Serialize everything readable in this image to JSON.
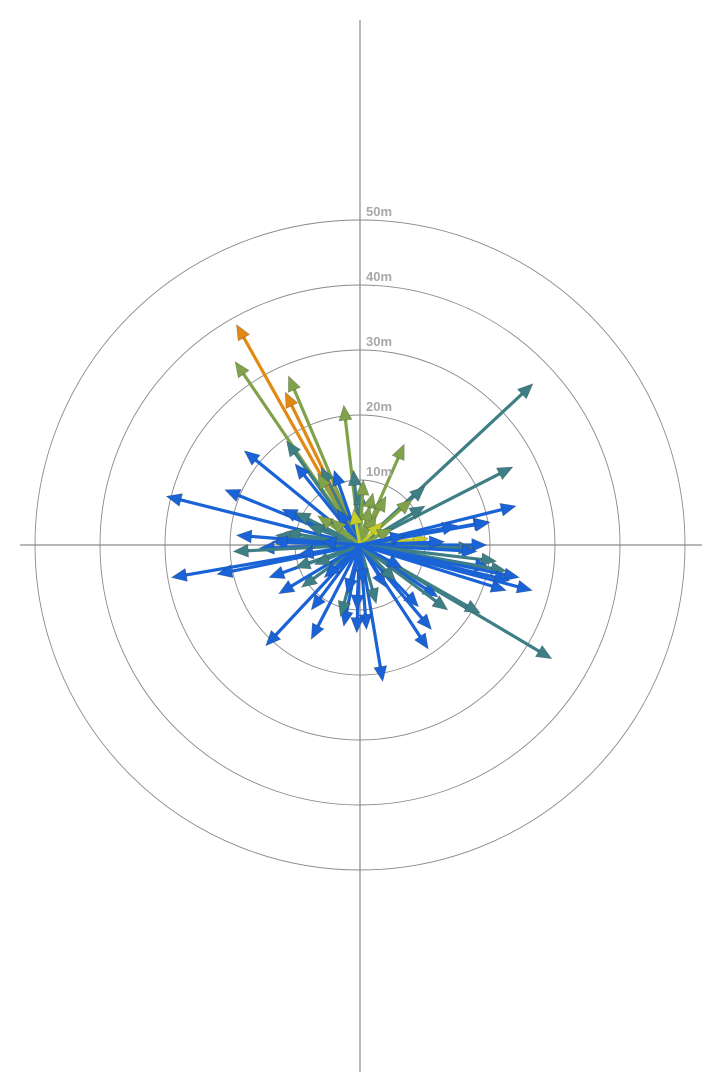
{
  "chart_data": {
    "type": "vector-polar",
    "title": "",
    "unit": "m",
    "rmax": 50,
    "ring_values": [
      10,
      20,
      30,
      40,
      50
    ],
    "ring_labels": [
      "10m",
      "20m",
      "30m",
      "40m",
      "50m"
    ],
    "grid": true,
    "colors": {
      "blue": "#1a63d6",
      "teal": "#3e7f86",
      "olive": "#7fa24a",
      "yellow": "#c6cc2a",
      "orange": "#e08a14",
      "axis": "#8a8a8a",
      "label": "#a8a8a8"
    },
    "vectors": [
      {
        "dx": -19.0,
        "dy": 33.9,
        "color": "orange"
      },
      {
        "dx": -19.2,
        "dy": 28.2,
        "color": "olive"
      },
      {
        "dx": -11.0,
        "dy": 26.0,
        "color": "olive"
      },
      {
        "dx": -11.5,
        "dy": 23.5,
        "color": "orange"
      },
      {
        "dx": -2.5,
        "dy": 21.5,
        "color": "olive"
      },
      {
        "dx": 26.6,
        "dy": 24.8,
        "color": "teal"
      },
      {
        "dx": 6.8,
        "dy": 15.5,
        "color": "olive"
      },
      {
        "dx": -11.3,
        "dy": 16.0,
        "color": "teal"
      },
      {
        "dx": -17.8,
        "dy": 14.5,
        "color": "blue"
      },
      {
        "dx": -20.8,
        "dy": 8.5,
        "color": "blue"
      },
      {
        "dx": -29.8,
        "dy": 7.5,
        "color": "blue"
      },
      {
        "dx": -10.0,
        "dy": 12.5,
        "color": "blue"
      },
      {
        "dx": -6.0,
        "dy": 12.0,
        "color": "teal"
      },
      {
        "dx": -4.0,
        "dy": 11.5,
        "color": "blue"
      },
      {
        "dx": -6.5,
        "dy": 11.0,
        "color": "olive"
      },
      {
        "dx": -1.0,
        "dy": 11.5,
        "color": "teal"
      },
      {
        "dx": 0.0,
        "dy": 8.5,
        "color": "teal"
      },
      {
        "dx": 0.5,
        "dy": 10.0,
        "color": "olive"
      },
      {
        "dx": 2.0,
        "dy": 8.0,
        "color": "olive"
      },
      {
        "dx": 1.5,
        "dy": 6.0,
        "color": "olive"
      },
      {
        "dx": 23.5,
        "dy": 12.0,
        "color": "teal"
      },
      {
        "dx": 24.0,
        "dy": 6.0,
        "color": "blue"
      },
      {
        "dx": 19.8,
        "dy": 3.6,
        "color": "blue"
      },
      {
        "dx": 10.0,
        "dy": 9.0,
        "color": "teal"
      },
      {
        "dx": 4.0,
        "dy": 7.5,
        "color": "olive"
      },
      {
        "dx": 8.0,
        "dy": 7.0,
        "color": "olive"
      },
      {
        "dx": 10.0,
        "dy": 6.0,
        "color": "teal"
      },
      {
        "dx": -12.0,
        "dy": 5.5,
        "color": "blue"
      },
      {
        "dx": -10.0,
        "dy": 5.0,
        "color": "teal"
      },
      {
        "dx": -6.5,
        "dy": 4.5,
        "color": "olive"
      },
      {
        "dx": -8.0,
        "dy": 3.0,
        "color": "teal"
      },
      {
        "dx": -11.5,
        "dy": 2.0,
        "color": "teal"
      },
      {
        "dx": -13.0,
        "dy": 1.5,
        "color": "teal"
      },
      {
        "dx": -19.0,
        "dy": 1.5,
        "color": "blue"
      },
      {
        "dx": -13.5,
        "dy": 0.5,
        "color": "blue"
      },
      {
        "dx": -15.5,
        "dy": -0.5,
        "color": "blue"
      },
      {
        "dx": -19.5,
        "dy": -1.0,
        "color": "teal"
      },
      {
        "dx": 10.5,
        "dy": 1.0,
        "color": "yellow"
      },
      {
        "dx": 15.0,
        "dy": 3.0,
        "color": "blue"
      },
      {
        "dx": 20.0,
        "dy": 3.5,
        "color": "blue"
      },
      {
        "dx": 19.5,
        "dy": 0.0,
        "color": "blue"
      },
      {
        "dx": 17.5,
        "dy": -0.5,
        "color": "teal"
      },
      {
        "dx": 18.0,
        "dy": -1.0,
        "color": "blue"
      },
      {
        "dx": 13.0,
        "dy": 0.5,
        "color": "blue"
      },
      {
        "dx": 21.0,
        "dy": -2.5,
        "color": "teal"
      },
      {
        "dx": 20.0,
        "dy": -3.5,
        "color": "blue"
      },
      {
        "dx": 22.5,
        "dy": -4.0,
        "color": "teal"
      },
      {
        "dx": 24.5,
        "dy": -5.0,
        "color": "blue"
      },
      {
        "dx": 23.0,
        "dy": -5.5,
        "color": "blue"
      },
      {
        "dx": 26.5,
        "dy": -7.0,
        "color": "blue"
      },
      {
        "dx": 29.5,
        "dy": -17.5,
        "color": "teal"
      },
      {
        "dx": 22.5,
        "dy": -7.0,
        "color": "blue"
      },
      {
        "dx": 12.0,
        "dy": -8.0,
        "color": "blue"
      },
      {
        "dx": 13.5,
        "dy": -10.0,
        "color": "teal"
      },
      {
        "dx": 18.5,
        "dy": -10.5,
        "color": "teal"
      },
      {
        "dx": 9.0,
        "dy": -9.5,
        "color": "blue"
      },
      {
        "dx": 11.0,
        "dy": -13.0,
        "color": "blue"
      },
      {
        "dx": 10.5,
        "dy": -16.0,
        "color": "blue"
      },
      {
        "dx": 3.5,
        "dy": -21.0,
        "color": "blue"
      },
      {
        "dx": 1.0,
        "dy": -13.0,
        "color": "blue"
      },
      {
        "dx": -0.5,
        "dy": -13.5,
        "color": "blue"
      },
      {
        "dx": -0.5,
        "dy": -10.0,
        "color": "blue"
      },
      {
        "dx": 2.5,
        "dy": -9.0,
        "color": "teal"
      },
      {
        "dx": -2.5,
        "dy": -12.5,
        "color": "blue"
      },
      {
        "dx": -3.0,
        "dy": -11.0,
        "color": "teal"
      },
      {
        "dx": -7.5,
        "dy": -14.5,
        "color": "blue"
      },
      {
        "dx": -14.5,
        "dy": -15.5,
        "color": "blue"
      },
      {
        "dx": -9.0,
        "dy": -6.5,
        "color": "teal"
      },
      {
        "dx": -12.5,
        "dy": -7.5,
        "color": "blue"
      },
      {
        "dx": -14.0,
        "dy": -5.0,
        "color": "blue"
      },
      {
        "dx": -10.0,
        "dy": -3.5,
        "color": "teal"
      },
      {
        "dx": -29.0,
        "dy": -5.0,
        "color": "blue"
      },
      {
        "dx": -22.0,
        "dy": -4.5,
        "color": "blue"
      },
      {
        "dx": -9.5,
        "dy": -1.5,
        "color": "blue"
      },
      {
        "dx": -7.0,
        "dy": -3.0,
        "color": "teal"
      },
      {
        "dx": -7.5,
        "dy": -10.0,
        "color": "blue"
      },
      {
        "dx": -3.5,
        "dy": 5.5,
        "color": "blue"
      },
      {
        "dx": -4.5,
        "dy": 4.0,
        "color": "olive"
      },
      {
        "dx": 2.5,
        "dy": 4.5,
        "color": "olive"
      },
      {
        "dx": 3.5,
        "dy": 3.5,
        "color": "yellow"
      },
      {
        "dx": -1.0,
        "dy": 5.5,
        "color": "yellow"
      },
      {
        "dx": 5.0,
        "dy": 2.5,
        "color": "olive"
      },
      {
        "dx": -2.0,
        "dy": -7.5,
        "color": "blue"
      },
      {
        "dx": 4.0,
        "dy": -6.5,
        "color": "blue"
      },
      {
        "dx": 5.5,
        "dy": -5.5,
        "color": "teal"
      },
      {
        "dx": -5.5,
        "dy": -5.0,
        "color": "blue"
      },
      {
        "dx": 6.5,
        "dy": -3.5,
        "color": "blue"
      },
      {
        "dx": 7.0,
        "dy": 1.5,
        "color": "blue"
      },
      {
        "dx": -6.0,
        "dy": 0.5,
        "color": "blue"
      },
      {
        "dx": 0.5,
        "dy": -6.0,
        "color": "blue"
      }
    ]
  }
}
